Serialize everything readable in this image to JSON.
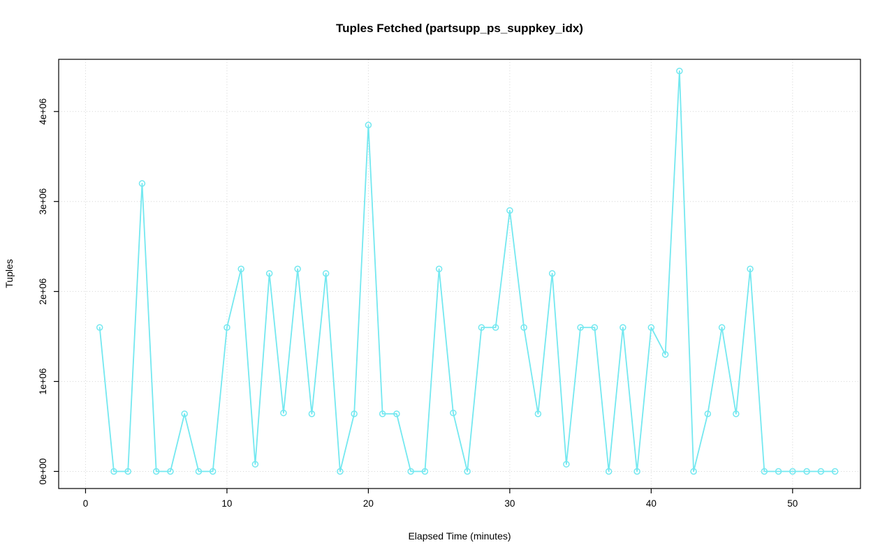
{
  "page": {
    "background": "#ffffff"
  },
  "chart_data": {
    "type": "line",
    "title": "Tuples Fetched (partsupp_ps_suppkey_idx)",
    "xlabel": "Elapsed Time (minutes)",
    "ylabel": "Tuples",
    "x": [
      1,
      2,
      3,
      4,
      5,
      6,
      7,
      8,
      9,
      10,
      11,
      12,
      13,
      14,
      15,
      16,
      17,
      18,
      19,
      20,
      21,
      22,
      23,
      24,
      25,
      26,
      27,
      28,
      29,
      30,
      31,
      32,
      33,
      34,
      35,
      36,
      37,
      38,
      39,
      40,
      41,
      42,
      43,
      44,
      45,
      46,
      47,
      48,
      49,
      50,
      51,
      52,
      53
    ],
    "y": [
      1600000,
      0,
      0,
      3200000,
      0,
      0,
      640000,
      0,
      0,
      1600000,
      2250000,
      80000,
      2200000,
      650000,
      2250000,
      640000,
      2200000,
      0,
      640000,
      3850000,
      640000,
      640000,
      0,
      0,
      2250000,
      650000,
      0,
      1600000,
      1600000,
      2900000,
      1600000,
      640000,
      2200000,
      80000,
      1600000,
      1600000,
      0,
      1600000,
      0,
      1600000,
      1300000,
      4450000,
      0,
      640000,
      1600000,
      640000,
      2250000,
      0,
      0,
      0,
      0,
      0,
      0
    ],
    "xlim": [
      -1.9,
      54.8
    ],
    "ylim": [
      -190000,
      4580000
    ],
    "x_ticks": [
      0,
      10,
      20,
      30,
      40,
      50
    ],
    "x_tick_labels": [
      "0",
      "10",
      "20",
      "30",
      "40",
      "50"
    ],
    "y_ticks": [
      0,
      1000000,
      2000000,
      3000000,
      4000000
    ],
    "y_tick_labels": [
      "0e+00",
      "1e+06",
      "2e+06",
      "3e+06",
      "4e+06"
    ],
    "grid": true,
    "legend": "none",
    "line_color": "#74E8F0",
    "marker": "circle-open",
    "marker_radius": 4,
    "grid_color": "#d6d6d6",
    "axis_color": "#000000"
  }
}
